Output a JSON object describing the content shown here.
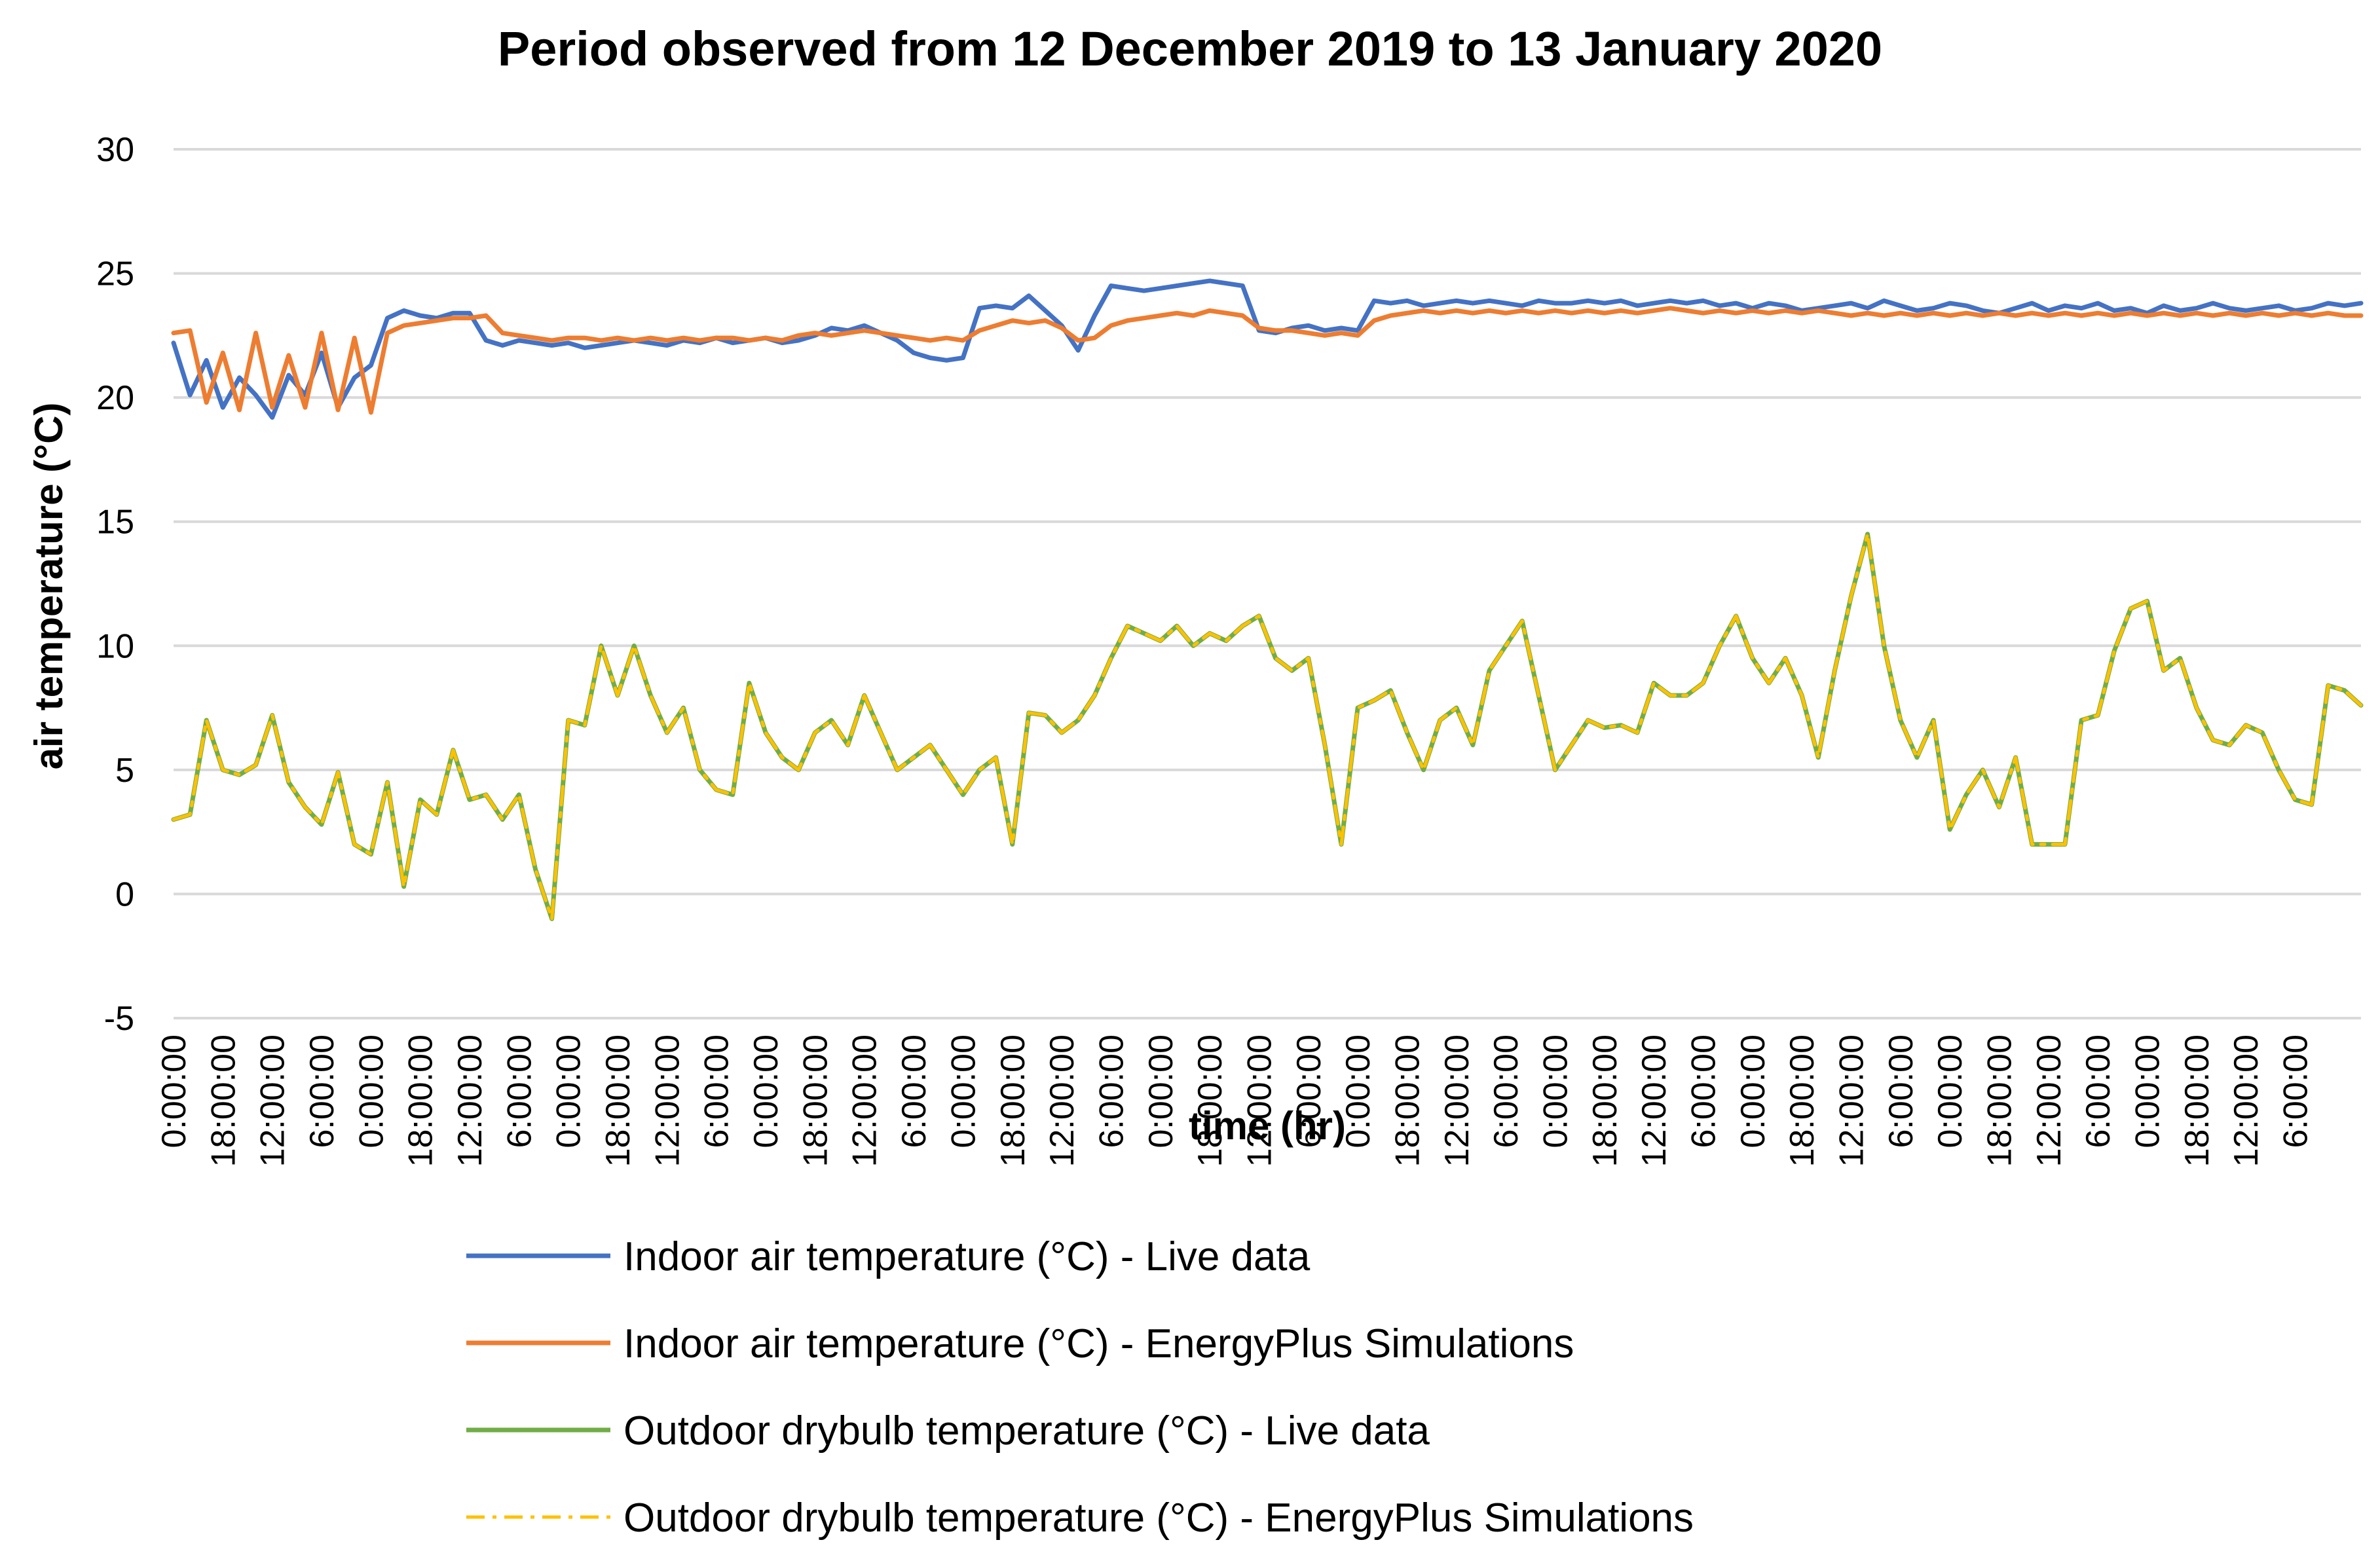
{
  "chart_data": {
    "type": "line",
    "title": "Period observed from 12 December 2019 to 13 January 2020",
    "xlabel": "time (hr)",
    "ylabel": "air temperature (°C)",
    "ylim": [
      -5,
      30
    ],
    "yticks": [
      -5,
      0,
      5,
      10,
      15,
      20,
      25,
      30
    ],
    "grid": true,
    "legend_position": "bottom",
    "x_range_hours": [
      0,
      798
    ],
    "x_tick_interval_hours": 18,
    "x_tick_labels": [
      "0:00:00",
      "18:00:00",
      "12:00:00",
      "6:00:00",
      "0:00:00",
      "18:00:00",
      "12:00:00",
      "6:00:00",
      "0:00:00",
      "18:00:00",
      "12:00:00",
      "6:00:00",
      "0:00:00",
      "18:00:00",
      "12:00:00",
      "6:00:00",
      "0:00:00",
      "18:00:00",
      "12:00:00",
      "6:00:00",
      "0:00:00",
      "18:00:00",
      "12:00:00",
      "6:00:00",
      "0:00:00",
      "18:00:00",
      "12:00:00",
      "6:00:00",
      "0:00:00",
      "18:00:00",
      "12:00:00",
      "6:00:00",
      "0:00:00",
      "18:00:00",
      "12:00:00",
      "6:00:00",
      "0:00:00",
      "18:00:00",
      "12:00:00",
      "6:00:00",
      "0:00:00",
      "18:00:00",
      "12:00:00",
      "6:00:00"
    ],
    "x": [
      0,
      6,
      12,
      18,
      24,
      30,
      36,
      42,
      48,
      54,
      60,
      66,
      72,
      78,
      84,
      90,
      96,
      102,
      108,
      114,
      120,
      126,
      132,
      138,
      144,
      150,
      156,
      162,
      168,
      174,
      180,
      186,
      192,
      198,
      204,
      210,
      216,
      222,
      228,
      234,
      240,
      246,
      252,
      258,
      264,
      270,
      276,
      282,
      288,
      294,
      300,
      306,
      312,
      318,
      324,
      330,
      336,
      342,
      348,
      354,
      360,
      366,
      372,
      378,
      384,
      390,
      396,
      402,
      408,
      414,
      420,
      426,
      432,
      438,
      444,
      450,
      456,
      462,
      468,
      474,
      480,
      486,
      492,
      498,
      504,
      510,
      516,
      522,
      528,
      534,
      540,
      546,
      552,
      558,
      564,
      570,
      576,
      582,
      588,
      594,
      600,
      606,
      612,
      618,
      624,
      630,
      636,
      642,
      648,
      654,
      660,
      666,
      672,
      678,
      684,
      690,
      696,
      702,
      708,
      714,
      720,
      726,
      732,
      738,
      744,
      750,
      756,
      762,
      768,
      774,
      780,
      786,
      792,
      798
    ],
    "series": [
      {
        "name": "Indoor air temperature (°C) - Live data",
        "color": "#4472c4",
        "dash": "solid",
        "values": [
          22.2,
          20.1,
          21.5,
          19.6,
          20.8,
          20.1,
          19.2,
          20.9,
          20.1,
          21.8,
          19.6,
          20.8,
          21.3,
          23.2,
          23.5,
          23.3,
          23.2,
          23.4,
          23.4,
          22.3,
          22.1,
          22.3,
          22.2,
          22.1,
          22.2,
          22.0,
          22.1,
          22.2,
          22.3,
          22.2,
          22.1,
          22.3,
          22.2,
          22.4,
          22.2,
          22.3,
          22.4,
          22.2,
          22.3,
          22.5,
          22.8,
          22.7,
          22.9,
          22.6,
          22.3,
          21.8,
          21.6,
          21.5,
          21.6,
          23.6,
          23.7,
          23.6,
          24.1,
          23.5,
          22.9,
          21.9,
          23.3,
          24.5,
          24.4,
          24.3,
          24.4,
          24.5,
          24.6,
          24.7,
          24.6,
          24.5,
          22.7,
          22.6,
          22.8,
          22.9,
          22.7,
          22.8,
          22.7,
          23.9,
          23.8,
          23.9,
          23.7,
          23.8,
          23.9,
          23.8,
          23.9,
          23.8,
          23.7,
          23.9,
          23.8,
          23.8,
          23.9,
          23.8,
          23.9,
          23.7,
          23.8,
          23.9,
          23.8,
          23.9,
          23.7,
          23.8,
          23.6,
          23.8,
          23.7,
          23.5,
          23.6,
          23.7,
          23.8,
          23.6,
          23.9,
          23.7,
          23.5,
          23.6,
          23.8,
          23.7,
          23.5,
          23.4,
          23.6,
          23.8,
          23.5,
          23.7,
          23.6,
          23.8,
          23.5,
          23.6,
          23.4,
          23.7,
          23.5,
          23.6,
          23.8,
          23.6,
          23.5,
          23.6,
          23.7,
          23.5,
          23.6,
          23.8,
          23.7,
          23.8
        ],
        "_note": "values aligned to x"
      },
      {
        "name": "Indoor air temperature (°C) - EnergyPlus Simulations",
        "color": "#ed7d31",
        "dash": "solid",
        "values": [
          22.6,
          22.7,
          19.8,
          21.8,
          19.5,
          22.6,
          19.6,
          21.7,
          19.6,
          22.6,
          19.5,
          22.4,
          19.4,
          22.6,
          22.9,
          23.0,
          23.1,
          23.2,
          23.2,
          23.3,
          22.6,
          22.5,
          22.4,
          22.3,
          22.4,
          22.4,
          22.3,
          22.4,
          22.3,
          22.4,
          22.3,
          22.4,
          22.3,
          22.4,
          22.4,
          22.3,
          22.4,
          22.3,
          22.5,
          22.6,
          22.5,
          22.6,
          22.7,
          22.6,
          22.5,
          22.4,
          22.3,
          22.4,
          22.3,
          22.7,
          22.9,
          23.1,
          23.0,
          23.1,
          22.8,
          22.3,
          22.4,
          22.9,
          23.1,
          23.2,
          23.3,
          23.4,
          23.3,
          23.5,
          23.4,
          23.3,
          22.8,
          22.7,
          22.7,
          22.6,
          22.5,
          22.6,
          22.5,
          23.1,
          23.3,
          23.4,
          23.5,
          23.4,
          23.5,
          23.4,
          23.5,
          23.4,
          23.5,
          23.4,
          23.5,
          23.4,
          23.5,
          23.4,
          23.5,
          23.4,
          23.5,
          23.6,
          23.5,
          23.4,
          23.5,
          23.4,
          23.5,
          23.4,
          23.5,
          23.4,
          23.5,
          23.4,
          23.3,
          23.4,
          23.3,
          23.4,
          23.3,
          23.4,
          23.3,
          23.4,
          23.3,
          23.4,
          23.3,
          23.4,
          23.3,
          23.4,
          23.3,
          23.4,
          23.3,
          23.4,
          23.3,
          23.4,
          23.3,
          23.4,
          23.3,
          23.4,
          23.3,
          23.4,
          23.3,
          23.4,
          23.3,
          23.4,
          23.3,
          23.3
        ]
      },
      {
        "name": "Outdoor drybulb temperature (°C) - Live data",
        "color": "#70ad47",
        "dash": "solid",
        "values": [
          3.0,
          3.2,
          7.0,
          5.0,
          4.8,
          5.2,
          7.2,
          4.5,
          3.5,
          2.8,
          4.9,
          2.0,
          1.6,
          4.5,
          0.3,
          3.8,
          3.2,
          5.8,
          3.8,
          4.0,
          3.0,
          4.0,
          1.0,
          -1.0,
          7.0,
          6.8,
          10.0,
          8.0,
          10.0,
          8.0,
          6.5,
          7.5,
          5.0,
          4.2,
          4.0,
          8.5,
          6.5,
          5.5,
          5.0,
          6.5,
          7.0,
          6.0,
          8.0,
          6.5,
          5.0,
          5.5,
          6.0,
          5.0,
          4.0,
          5.0,
          5.5,
          2.0,
          7.3,
          7.2,
          6.5,
          7.0,
          8.0,
          9.5,
          10.8,
          10.5,
          10.2,
          10.8,
          10.0,
          10.5,
          10.2,
          10.8,
          11.2,
          9.5,
          9.0,
          9.5,
          6.0,
          2.0,
          7.5,
          7.8,
          8.2,
          6.5,
          5.0,
          7.0,
          7.5,
          6.0,
          9.0,
          10.0,
          11.0,
          8.0,
          5.0,
          6.0,
          7.0,
          6.7,
          6.8,
          6.5,
          8.5,
          8.0,
          8.0,
          8.5,
          10.0,
          11.2,
          9.5,
          8.5,
          9.5,
          8.0,
          5.5,
          9.0,
          12.0,
          14.5,
          10.0,
          7.0,
          5.5,
          7.0,
          2.6,
          4.0,
          5.0,
          3.5,
          5.5,
          2.0,
          2.0,
          2.0,
          7.0,
          7.2,
          9.8,
          11.5,
          11.8,
          9.0,
          9.5,
          7.5,
          6.2,
          6.0,
          6.8,
          6.5,
          5.0,
          3.8,
          3.6,
          8.4,
          8.2,
          7.6
        ]
      },
      {
        "name": "Outdoor drybulb temperature (°C) - EnergyPlus Simulations",
        "color": "#ffc000",
        "dash": "dashdot",
        "values": [
          3.0,
          3.2,
          7.0,
          5.0,
          4.8,
          5.2,
          7.2,
          4.5,
          3.5,
          2.8,
          4.9,
          2.0,
          1.6,
          4.5,
          0.3,
          3.8,
          3.2,
          5.8,
          3.8,
          4.0,
          3.0,
          4.0,
          1.0,
          -1.0,
          7.0,
          6.8,
          10.0,
          8.0,
          10.0,
          8.0,
          6.5,
          7.5,
          5.0,
          4.2,
          4.0,
          8.5,
          6.5,
          5.5,
          5.0,
          6.5,
          7.0,
          6.0,
          8.0,
          6.5,
          5.0,
          5.5,
          6.0,
          5.0,
          4.0,
          5.0,
          5.5,
          2.0,
          7.3,
          7.2,
          6.5,
          7.0,
          8.0,
          9.5,
          10.8,
          10.5,
          10.2,
          10.8,
          10.0,
          10.5,
          10.2,
          10.8,
          11.2,
          9.5,
          9.0,
          9.5,
          6.0,
          2.0,
          7.5,
          7.8,
          8.2,
          6.5,
          5.0,
          7.0,
          7.5,
          6.0,
          9.0,
          10.0,
          11.0,
          8.0,
          5.0,
          6.0,
          7.0,
          6.7,
          6.8,
          6.5,
          8.5,
          8.0,
          8.0,
          8.5,
          10.0,
          11.2,
          9.5,
          8.5,
          9.5,
          8.0,
          5.5,
          9.0,
          12.0,
          14.5,
          10.0,
          7.0,
          5.5,
          7.0,
          2.6,
          4.0,
          5.0,
          3.5,
          5.5,
          2.0,
          2.0,
          2.0,
          7.0,
          7.2,
          9.8,
          11.5,
          11.8,
          9.0,
          9.5,
          7.5,
          6.2,
          6.0,
          6.8,
          6.5,
          5.0,
          3.8,
          3.6,
          8.4,
          8.2,
          7.6
        ]
      }
    ]
  }
}
